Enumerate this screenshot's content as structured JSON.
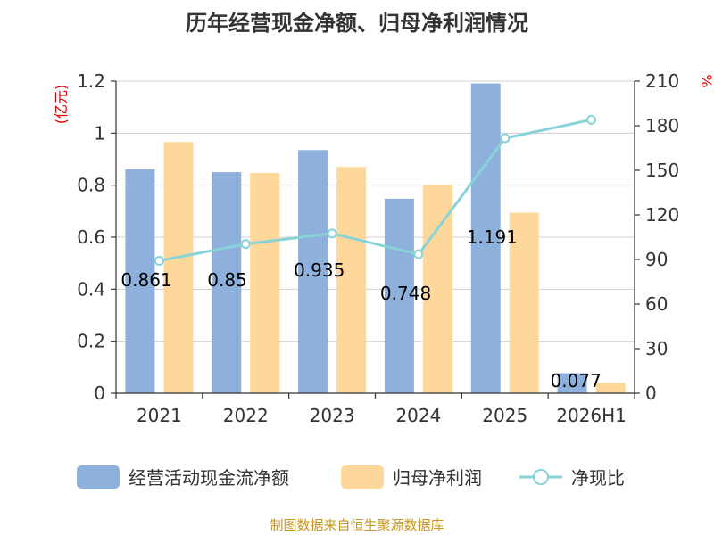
{
  "chart_data": {
    "type": "bar",
    "title": "历年经营现金净额、归母净利润情况",
    "categories": [
      "2021",
      "2022",
      "2023",
      "2024",
      "2025",
      "2026H1"
    ],
    "series": [
      {
        "name": "经营活动现金流净额",
        "type": "bar",
        "axis": "left",
        "color": "#8eb0dc",
        "values": [
          0.861,
          0.85,
          0.935,
          0.748,
          1.191,
          0.077
        ]
      },
      {
        "name": "归母净利润",
        "type": "bar",
        "axis": "left",
        "color": "#fed89b",
        "values": [
          0.966,
          0.847,
          0.87,
          0.8,
          0.694,
          0.04
        ]
      },
      {
        "name": "净现比",
        "type": "line",
        "axis": "right",
        "color": "#88d3d8",
        "values": [
          89.1,
          100.4,
          107.5,
          93.5,
          171.6,
          184.0
        ]
      }
    ],
    "data_labels": [
      "0.861",
      "0.85",
      "0.935",
      "0.748",
      "1.191",
      "0.077"
    ],
    "y_left": {
      "unit": "(亿元)",
      "range": [
        0,
        1.2
      ],
      "ticks": [
        "0",
        "0.2",
        "0.4",
        "0.6",
        "0.8",
        "1",
        "1.2"
      ]
    },
    "y_right": {
      "unit": "%",
      "range": [
        0,
        210
      ],
      "ticks": [
        "0",
        "30",
        "60",
        "90",
        "120",
        "150",
        "180",
        "210"
      ]
    },
    "grid": true,
    "legend_position": "bottom",
    "source": "制图数据来自恒生聚源数据库"
  }
}
